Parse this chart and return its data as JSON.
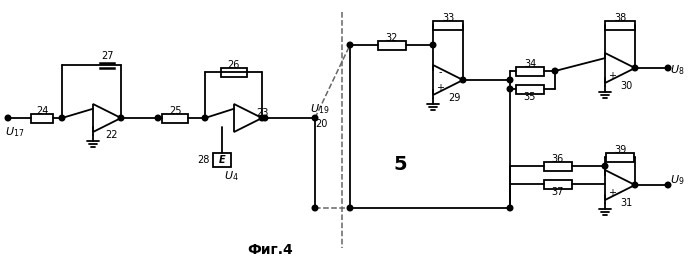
{
  "title": "Фиг.4",
  "bg_color": "#ffffff",
  "line_color": "#000000"
}
